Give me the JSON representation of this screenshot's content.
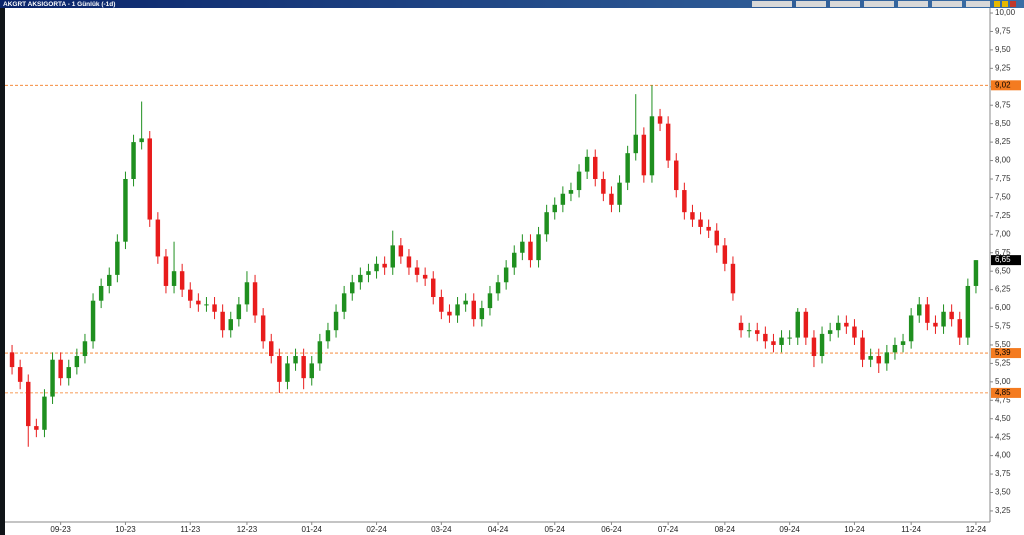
{
  "chart_data": {
    "type": "candlestick",
    "title": "AKGRT AKSIGORTA - 1 Günlük (-1d)",
    "categories": [
      null,
      null,
      null,
      null,
      null,
      null,
      "09-23",
      null,
      null,
      null,
      null,
      null,
      null,
      null,
      "10-23",
      null,
      null,
      null,
      null,
      null,
      null,
      null,
      "11-23",
      null,
      null,
      null,
      null,
      null,
      null,
      "12-23",
      null,
      null,
      null,
      null,
      null,
      null,
      null,
      "01-24",
      null,
      null,
      null,
      null,
      null,
      null,
      null,
      "02-24",
      null,
      null,
      null,
      null,
      null,
      null,
      null,
      "03-24",
      null,
      null,
      null,
      null,
      null,
      null,
      "04-24",
      null,
      null,
      null,
      null,
      null,
      null,
      "05-24",
      null,
      null,
      null,
      null,
      null,
      null,
      "06-24",
      null,
      null,
      null,
      null,
      null,
      null,
      "07-24",
      null,
      null,
      null,
      null,
      null,
      null,
      "08-24",
      null,
      null,
      null,
      null,
      null,
      null,
      null,
      "09-24",
      null,
      null,
      null,
      null,
      null,
      null,
      null,
      "10-24",
      null,
      null,
      null,
      null,
      null,
      null,
      "11-24",
      null,
      null,
      null,
      null,
      null,
      null,
      null,
      "12-24"
    ],
    "open": [
      5.4,
      5.2,
      5.0,
      4.4,
      4.35,
      4.8,
      5.3,
      5.05,
      5.2,
      5.35,
      5.55,
      6.1,
      6.3,
      6.45,
      6.9,
      7.75,
      8.25,
      8.3,
      7.2,
      6.7,
      6.3,
      6.5,
      6.25,
      6.1,
      6.05,
      6.05,
      5.95,
      5.7,
      5.85,
      6.05,
      6.35,
      5.9,
      5.55,
      5.35,
      5.0,
      5.25,
      5.35,
      5.05,
      5.25,
      5.55,
      5.7,
      5.95,
      6.2,
      6.35,
      6.45,
      6.5,
      6.6,
      6.55,
      6.85,
      6.7,
      6.55,
      6.45,
      6.4,
      6.15,
      5.95,
      5.9,
      6.05,
      6.1,
      5.85,
      6.0,
      6.2,
      6.35,
      6.55,
      6.75,
      6.9,
      6.65,
      7.0,
      7.3,
      7.4,
      7.55,
      7.6,
      7.85,
      8.05,
      7.75,
      7.55,
      7.4,
      7.7,
      8.1,
      8.35,
      7.8,
      8.6,
      8.5,
      8.0,
      7.6,
      7.3,
      7.2,
      7.1,
      7.05,
      6.85,
      6.6,
      5.8,
      5.7,
      5.7,
      5.65,
      5.55,
      5.5,
      5.6,
      5.6,
      5.95,
      5.6,
      5.35,
      5.65,
      5.7,
      5.8,
      5.75,
      5.6,
      5.3,
      5.35,
      5.25,
      5.4,
      5.5,
      5.55,
      5.9,
      6.05,
      5.8,
      5.75,
      5.95,
      5.85,
      5.6,
      6.3
    ],
    "high": [
      5.5,
      5.3,
      5.1,
      4.5,
      4.9,
      5.4,
      5.4,
      5.3,
      5.45,
      5.65,
      6.2,
      6.4,
      6.55,
      7.0,
      7.85,
      8.35,
      8.8,
      8.4,
      7.3,
      6.8,
      6.9,
      6.6,
      6.35,
      6.2,
      6.15,
      6.15,
      6.05,
      5.95,
      6.15,
      6.5,
      6.45,
      6.0,
      5.65,
      5.45,
      5.35,
      5.45,
      5.45,
      5.35,
      5.65,
      5.8,
      6.05,
      6.3,
      6.45,
      6.55,
      6.6,
      6.7,
      6.7,
      7.05,
      6.95,
      6.8,
      6.65,
      6.55,
      6.5,
      6.25,
      6.05,
      6.15,
      6.2,
      6.2,
      6.1,
      6.3,
      6.45,
      6.65,
      6.85,
      7.0,
      7.0,
      7.1,
      7.4,
      7.5,
      7.65,
      7.7,
      7.95,
      8.15,
      8.15,
      7.85,
      7.65,
      7.8,
      8.2,
      8.9,
      8.45,
      9.02,
      8.7,
      8.6,
      8.1,
      7.7,
      7.4,
      7.3,
      7.2,
      7.15,
      6.95,
      6.7,
      5.9,
      5.8,
      5.8,
      5.75,
      5.65,
      5.7,
      5.7,
      6.0,
      6.0,
      5.7,
      5.75,
      5.8,
      5.9,
      5.9,
      5.85,
      5.7,
      5.45,
      5.45,
      5.5,
      5.6,
      5.65,
      6.0,
      6.15,
      6.15,
      5.9,
      6.05,
      6.05,
      5.95,
      6.4,
      6.65
    ],
    "low": [
      5.1,
      4.9,
      4.12,
      4.25,
      4.25,
      4.7,
      4.95,
      4.95,
      5.1,
      5.25,
      5.45,
      6.0,
      6.2,
      6.35,
      6.8,
      7.65,
      8.15,
      7.1,
      6.6,
      6.2,
      6.2,
      6.15,
      6.0,
      5.95,
      5.95,
      5.85,
      5.6,
      5.6,
      5.75,
      5.95,
      5.8,
      5.45,
      5.25,
      4.85,
      4.9,
      5.15,
      4.9,
      4.95,
      5.15,
      5.45,
      5.6,
      5.85,
      6.1,
      6.25,
      6.35,
      6.4,
      6.45,
      6.45,
      6.6,
      6.45,
      6.35,
      6.3,
      6.05,
      5.85,
      5.8,
      5.8,
      5.95,
      5.75,
      5.75,
      5.9,
      6.1,
      6.25,
      6.45,
      6.65,
      6.55,
      6.55,
      6.9,
      7.2,
      7.3,
      7.45,
      7.5,
      7.75,
      7.65,
      7.45,
      7.3,
      7.3,
      7.6,
      8.0,
      7.7,
      7.7,
      8.4,
      7.9,
      7.5,
      7.2,
      7.1,
      7.0,
      6.95,
      6.75,
      6.5,
      6.1,
      5.6,
      5.6,
      5.55,
      5.45,
      5.4,
      5.4,
      5.5,
      5.5,
      5.5,
      5.2,
      5.25,
      5.55,
      5.6,
      5.65,
      5.5,
      5.2,
      5.2,
      5.12,
      5.15,
      5.3,
      5.4,
      5.45,
      5.8,
      5.7,
      5.65,
      5.65,
      5.75,
      5.5,
      5.5,
      6.2
    ],
    "close": [
      5.2,
      5.0,
      4.4,
      4.35,
      4.8,
      5.3,
      5.05,
      5.2,
      5.35,
      5.55,
      6.1,
      6.3,
      6.45,
      6.9,
      7.75,
      8.25,
      8.3,
      7.2,
      6.7,
      6.3,
      6.5,
      6.25,
      6.1,
      6.05,
      6.05,
      5.95,
      5.7,
      5.85,
      6.05,
      6.35,
      5.9,
      5.55,
      5.35,
      5.0,
      5.25,
      5.35,
      5.05,
      5.25,
      5.55,
      5.7,
      5.95,
      6.2,
      6.35,
      6.45,
      6.5,
      6.6,
      6.55,
      6.85,
      6.7,
      6.55,
      6.45,
      6.4,
      6.15,
      5.95,
      5.9,
      6.05,
      6.1,
      5.85,
      6.0,
      6.2,
      6.35,
      6.55,
      6.75,
      6.9,
      6.65,
      7.0,
      7.3,
      7.4,
      7.55,
      7.6,
      7.85,
      8.05,
      7.75,
      7.55,
      7.4,
      7.7,
      8.1,
      8.35,
      7.8,
      8.6,
      8.5,
      8.0,
      7.6,
      7.3,
      7.2,
      7.1,
      7.05,
      6.85,
      6.6,
      6.2,
      5.7,
      5.7,
      5.65,
      5.55,
      5.5,
      5.6,
      5.6,
      5.95,
      5.6,
      5.35,
      5.65,
      5.7,
      5.8,
      5.75,
      5.6,
      5.3,
      5.35,
      5.25,
      5.4,
      5.5,
      5.55,
      5.9,
      6.05,
      5.8,
      5.75,
      5.95,
      5.85,
      5.6,
      6.3,
      6.65
    ],
    "up_color": "#1f8f1f",
    "down_color": "#e81c1c",
    "ylim": [
      3.1,
      10.068
    ],
    "yticks": [
      {
        "value": 3.25,
        "label": "3,25"
      },
      {
        "value": 3.5,
        "label": "3,50"
      },
      {
        "value": 3.75,
        "label": "3,75"
      },
      {
        "value": 4.0,
        "label": "4,00"
      },
      {
        "value": 4.25,
        "label": "4,25"
      },
      {
        "value": 4.5,
        "label": "4,50"
      },
      {
        "value": 4.75,
        "label": "4,75"
      },
      {
        "value": 5.0,
        "label": "5,00"
      },
      {
        "value": 5.25,
        "label": "5,25"
      },
      {
        "value": 5.5,
        "label": "5,50"
      },
      {
        "value": 5.75,
        "label": "5,75"
      },
      {
        "value": 6.0,
        "label": "6,00"
      },
      {
        "value": 6.25,
        "label": "6,25"
      },
      {
        "value": 6.5,
        "label": "6,50"
      },
      {
        "value": 6.75,
        "label": "6,75"
      },
      {
        "value": 7.0,
        "label": "7,00"
      },
      {
        "value": 7.25,
        "label": "7,25"
      },
      {
        "value": 7.5,
        "label": "7,50"
      },
      {
        "value": 7.75,
        "label": "7,75"
      },
      {
        "value": 8.0,
        "label": "8,00"
      },
      {
        "value": 8.25,
        "label": "8,25"
      },
      {
        "value": 8.5,
        "label": "8,50"
      },
      {
        "value": 8.75,
        "label": "8,75"
      },
      {
        "value": 9.0,
        "label": "9,00"
      },
      {
        "value": 9.25,
        "label": "9,25"
      },
      {
        "value": 9.5,
        "label": "9,50"
      },
      {
        "value": 9.75,
        "label": "9,75"
      },
      {
        "value": 10.0,
        "label": "10,00"
      }
    ],
    "levels": [
      {
        "value": 9.02,
        "label": "9,02"
      },
      {
        "value": 5.39,
        "label": "5,39"
      },
      {
        "value": 4.85,
        "label": "4,85"
      }
    ],
    "level_color": "#f47b20",
    "last_price": {
      "value": 6.65,
      "label": "6,65"
    },
    "grid": false
  }
}
